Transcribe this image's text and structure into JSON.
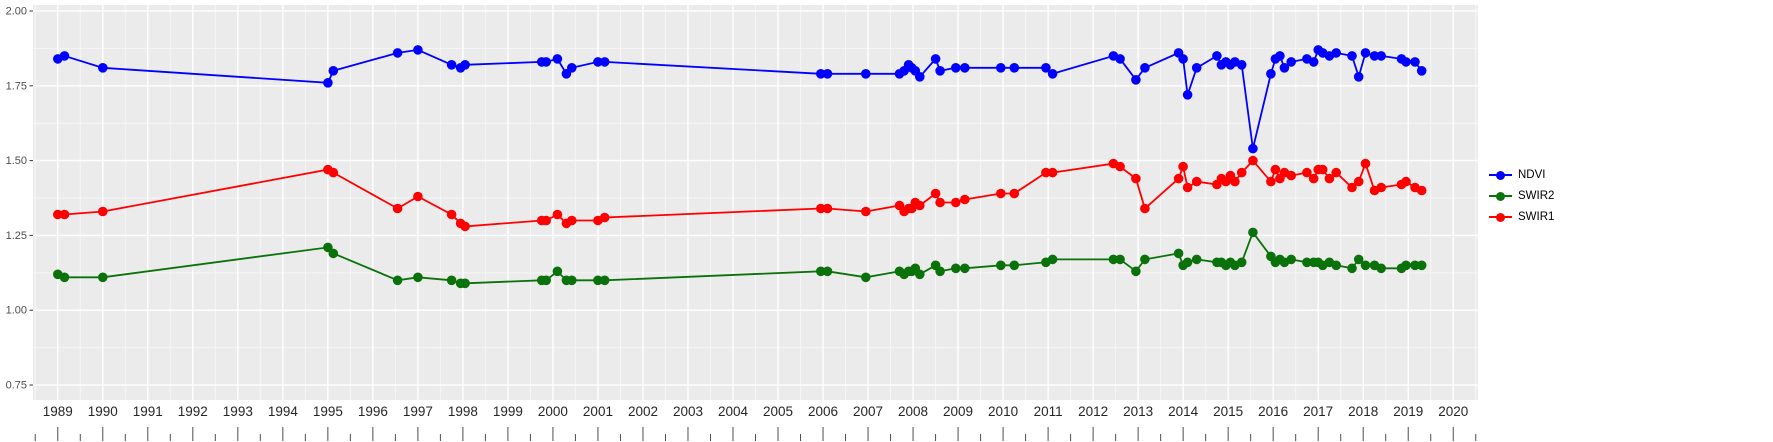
{
  "chart_data": {
    "type": "line",
    "marker": "point",
    "title": "",
    "xlabel": "",
    "ylabel": "",
    "grid": true,
    "legend_position": "right",
    "panel_background": "#EBEBEB",
    "gridline_color": "#FFFFFF",
    "axis_text_color": "#4D4D4D",
    "tick_color": "#333333",
    "xlim": [
      1988.45,
      2020.55
    ],
    "ylim": [
      0.7,
      2.02
    ],
    "x_ticks": [
      1989,
      1990,
      1991,
      1992,
      1993,
      1994,
      1995,
      1996,
      1997,
      1998,
      1999,
      2000,
      2001,
      2002,
      2003,
      2004,
      2005,
      2006,
      2007,
      2008,
      2009,
      2010,
      2011,
      2012,
      2013,
      2014,
      2015,
      2016,
      2017,
      2018,
      2019,
      2020
    ],
    "y_tick_values": [
      2.0,
      1.75,
      1.5,
      1.25,
      1.0,
      0.75
    ],
    "y_tick_labels": [
      "2.00",
      "1.75",
      "1.50",
      "1.25",
      "1.00",
      "0.75"
    ],
    "y_minor_ticks": [
      1.875,
      1.625,
      1.375,
      1.125,
      0.875
    ],
    "x": [
      1989.0,
      1989.15,
      1990.0,
      1995.0,
      1995.12,
      1996.55,
      1997.0,
      1997.75,
      1997.95,
      1998.05,
      1999.75,
      1999.85,
      2000.1,
      2000.3,
      2000.42,
      2001.0,
      2001.15,
      2005.95,
      2006.1,
      2006.95,
      2007.7,
      2007.8,
      2007.9,
      2007.97,
      2008.05,
      2008.15,
      2008.5,
      2008.6,
      2008.95,
      2009.15,
      2009.95,
      2010.25,
      2010.95,
      2011.1,
      2012.45,
      2012.6,
      2012.95,
      2013.15,
      2013.9,
      2014.0,
      2014.1,
      2014.3,
      2014.75,
      2014.85,
      2014.95,
      2015.05,
      2015.15,
      2015.3,
      2015.55,
      2015.95,
      2016.05,
      2016.15,
      2016.25,
      2016.4,
      2016.75,
      2016.9,
      2017.0,
      2017.1,
      2017.25,
      2017.4,
      2017.75,
      2017.9,
      2018.05,
      2018.25,
      2018.4,
      2018.85,
      2018.95,
      2019.15,
      2019.3
    ],
    "series": [
      {
        "name": "NDVI",
        "color": "#0000FF",
        "values": [
          1.84,
          1.85,
          1.81,
          1.76,
          1.8,
          1.86,
          1.87,
          1.82,
          1.81,
          1.82,
          1.83,
          1.83,
          1.84,
          1.79,
          1.81,
          1.83,
          1.83,
          1.79,
          1.79,
          1.79,
          1.79,
          1.8,
          1.82,
          1.81,
          1.8,
          1.78,
          1.84,
          1.8,
          1.81,
          1.81,
          1.81,
          1.81,
          1.81,
          1.79,
          1.85,
          1.84,
          1.77,
          1.81,
          1.86,
          1.84,
          1.72,
          1.81,
          1.85,
          1.82,
          1.83,
          1.82,
          1.83,
          1.82,
          1.54,
          1.79,
          1.84,
          1.85,
          1.81,
          1.83,
          1.84,
          1.83,
          1.87,
          1.86,
          1.85,
          1.86,
          1.85,
          1.78,
          1.86,
          1.85,
          1.85,
          1.84,
          1.83,
          1.83,
          1.8
        ]
      },
      {
        "name": "SWIR2",
        "color": "#0B720B",
        "values": [
          1.12,
          1.11,
          1.11,
          1.21,
          1.19,
          1.1,
          1.11,
          1.1,
          1.09,
          1.09,
          1.1,
          1.1,
          1.13,
          1.1,
          1.1,
          1.1,
          1.1,
          1.13,
          1.13,
          1.11,
          1.13,
          1.12,
          1.13,
          1.13,
          1.14,
          1.12,
          1.15,
          1.13,
          1.14,
          1.14,
          1.15,
          1.15,
          1.16,
          1.17,
          1.17,
          1.17,
          1.13,
          1.17,
          1.19,
          1.15,
          1.16,
          1.17,
          1.16,
          1.16,
          1.15,
          1.16,
          1.15,
          1.16,
          1.26,
          1.18,
          1.16,
          1.17,
          1.16,
          1.17,
          1.16,
          1.16,
          1.16,
          1.15,
          1.16,
          1.15,
          1.14,
          1.17,
          1.15,
          1.15,
          1.14,
          1.14,
          1.15,
          1.15,
          1.15
        ]
      },
      {
        "name": "SWIR1",
        "color": "#FF0000",
        "values": [
          1.32,
          1.32,
          1.33,
          1.47,
          1.46,
          1.34,
          1.38,
          1.32,
          1.29,
          1.28,
          1.3,
          1.3,
          1.32,
          1.29,
          1.3,
          1.3,
          1.31,
          1.34,
          1.34,
          1.33,
          1.35,
          1.33,
          1.34,
          1.34,
          1.36,
          1.35,
          1.39,
          1.36,
          1.36,
          1.37,
          1.39,
          1.39,
          1.46,
          1.46,
          1.49,
          1.48,
          1.44,
          1.34,
          1.44,
          1.48,
          1.41,
          1.43,
          1.42,
          1.44,
          1.43,
          1.45,
          1.43,
          1.46,
          1.5,
          1.43,
          1.47,
          1.44,
          1.46,
          1.45,
          1.46,
          1.44,
          1.47,
          1.47,
          1.44,
          1.46,
          1.41,
          1.43,
          1.49,
          1.4,
          1.41,
          1.42,
          1.43,
          1.41,
          1.4
        ]
      }
    ]
  }
}
